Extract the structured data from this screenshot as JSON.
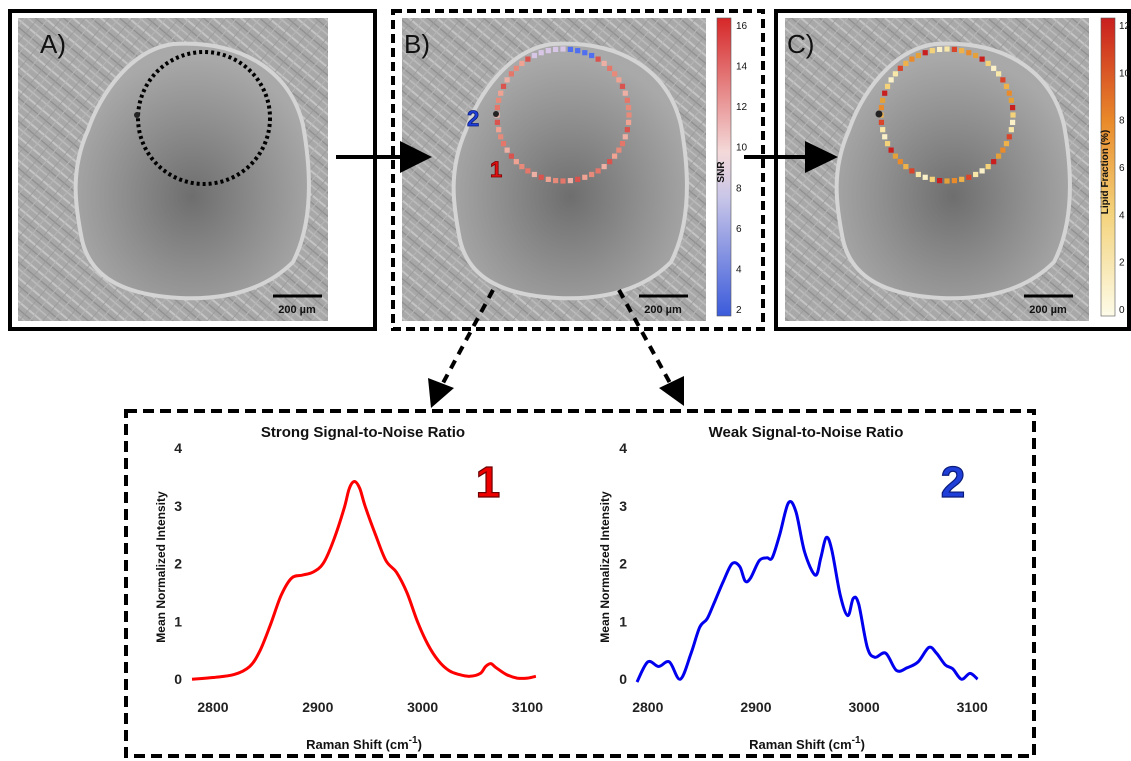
{
  "panels": {
    "a": {
      "letter": "A)",
      "scale_bar": "200 µm"
    },
    "b": {
      "letter": "B)",
      "scale_bar": "200 µm",
      "marker_1": "1",
      "marker_2": "2",
      "colorbar": {
        "title": "SNR",
        "ticks": [
          "16",
          "14",
          "12",
          "10",
          "8",
          "6",
          "4",
          "2"
        ]
      }
    },
    "c": {
      "letter": "C)",
      "scale_bar": "200 µm",
      "colorbar": {
        "title": "Lipid Fraction (%)",
        "ticks": [
          "12",
          "10",
          "8",
          "6",
          "4",
          "2",
          "0"
        ]
      }
    }
  },
  "colors": {
    "strong": "#ff0000",
    "weak": "#0000ee",
    "snr_high": "#d62728",
    "snr_low": "#3b5bdb"
  },
  "chart_data": [
    {
      "type": "line",
      "title": "Strong Signal-to-Noise Ratio",
      "annotation": "1",
      "xlabel": "Raman Shift (cm-1)",
      "ylabel": "Mean Normalized Intensity",
      "xlim": [
        2780,
        3110
      ],
      "ylim": [
        -0.1,
        4
      ],
      "xticks": [
        2800,
        2900,
        3000,
        3100
      ],
      "yticks": [
        0,
        1,
        2,
        3,
        4
      ],
      "series": [
        {
          "color": "#ff0000",
          "x": [
            2780,
            2800,
            2820,
            2835,
            2845,
            2855,
            2865,
            2875,
            2885,
            2895,
            2905,
            2915,
            2925,
            2930,
            2935,
            2940,
            2945,
            2955,
            2965,
            2975,
            2985,
            2995,
            3005,
            3015,
            3025,
            3035,
            3045,
            3055,
            3060,
            3065,
            3070,
            3080,
            3090,
            3100,
            3108
          ],
          "y": [
            0.0,
            0.03,
            0.08,
            0.22,
            0.5,
            0.95,
            1.45,
            1.75,
            1.8,
            1.85,
            2.0,
            2.4,
            2.95,
            3.3,
            3.42,
            3.3,
            3.0,
            2.5,
            2.05,
            1.85,
            1.5,
            1.0,
            0.6,
            0.32,
            0.15,
            0.08,
            0.05,
            0.1,
            0.22,
            0.27,
            0.2,
            0.08,
            0.02,
            0.02,
            0.05
          ]
        }
      ]
    },
    {
      "type": "line",
      "title": "Weak Signal-to-Noise Ratio",
      "annotation": "2",
      "xlabel": "Raman Shift (cm-1)",
      "ylabel": "Mean Normalized Intensity",
      "xlim": [
        2790,
        3110
      ],
      "ylim": [
        -0.1,
        4
      ],
      "xticks": [
        2800,
        2900,
        3000,
        3100
      ],
      "yticks": [
        0,
        1,
        2,
        3,
        4
      ],
      "series": [
        {
          "color": "#0000ee",
          "x": [
            2790,
            2800,
            2810,
            2820,
            2830,
            2840,
            2848,
            2855,
            2862,
            2870,
            2878,
            2885,
            2890,
            2895,
            2903,
            2910,
            2915,
            2922,
            2930,
            2937,
            2945,
            2955,
            2960,
            2965,
            2970,
            2978,
            2985,
            2990,
            2995,
            3003,
            3010,
            3020,
            3030,
            3040,
            3050,
            3060,
            3067,
            3075,
            3082,
            3090,
            3098,
            3105
          ],
          "y": [
            -0.05,
            0.3,
            0.22,
            0.3,
            0.0,
            0.45,
            0.9,
            1.05,
            1.35,
            1.7,
            2.0,
            1.95,
            1.7,
            1.75,
            2.05,
            2.1,
            2.1,
            2.5,
            3.05,
            2.9,
            2.2,
            1.8,
            2.1,
            2.45,
            2.25,
            1.45,
            1.1,
            1.4,
            1.3,
            0.55,
            0.38,
            0.45,
            0.15,
            0.2,
            0.3,
            0.55,
            0.45,
            0.25,
            0.18,
            0.0,
            0.1,
            0.0
          ]
        }
      ]
    }
  ]
}
